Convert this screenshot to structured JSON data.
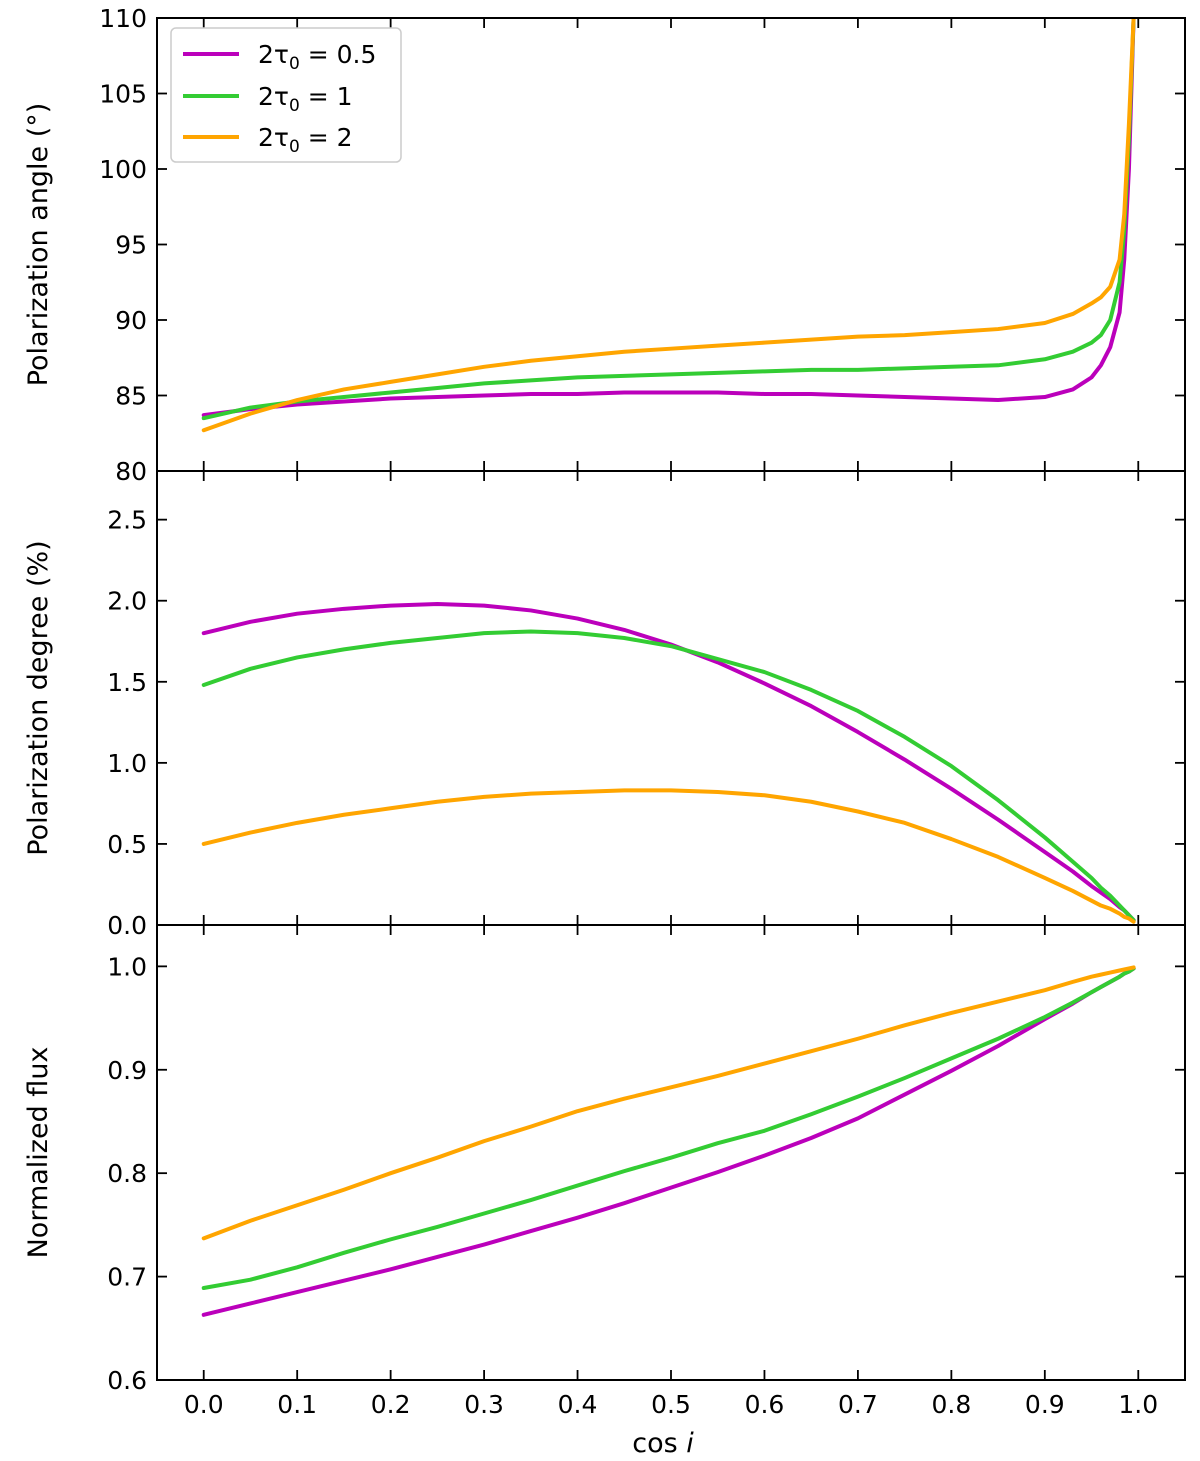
{
  "chart_data": {
    "type": "line",
    "x": [
      0.0,
      0.05,
      0.1,
      0.15,
      0.2,
      0.25,
      0.3,
      0.35,
      0.4,
      0.45,
      0.5,
      0.55,
      0.6,
      0.65,
      0.7,
      0.75,
      0.8,
      0.85,
      0.9,
      0.93,
      0.95,
      0.96,
      0.97,
      0.98,
      0.985,
      0.99,
      0.995
    ],
    "xlabel": "cos",
    "xlabel_italic": "i",
    "xlim": [
      -0.05,
      1.05
    ],
    "xticks": [
      0.0,
      0.1,
      0.2,
      0.3,
      0.4,
      0.5,
      0.6,
      0.7,
      0.8,
      0.9,
      1.0
    ],
    "xtick_labels": [
      "0.0",
      "0.1",
      "0.2",
      "0.3",
      "0.4",
      "0.5",
      "0.6",
      "0.7",
      "0.8",
      "0.9",
      "1.0"
    ],
    "legend": {
      "placement": "upper-left of top panel",
      "entries": [
        {
          "prefix": "2τ",
          "subscript": "0",
          "suffix": " = 0.5"
        },
        {
          "prefix": "2τ",
          "subscript": "0",
          "suffix": " = 1"
        },
        {
          "prefix": "2τ",
          "subscript": "0",
          "suffix": " = 2"
        }
      ]
    },
    "series_colors": [
      "#bb00bb",
      "#33cc33",
      "#ffa500"
    ],
    "panels": [
      {
        "id": "angle",
        "ylabel": "Polarization angle (°)",
        "ylim": [
          80,
          110
        ],
        "yticks": [
          80,
          85,
          90,
          95,
          100,
          105,
          110
        ],
        "ytick_labels": [
          "80",
          "85",
          "90",
          "95",
          "100",
          "105",
          "110"
        ],
        "series": [
          {
            "name": "2τ0 = 0.5",
            "values": [
              83.7,
              84.1,
              84.4,
              84.6,
              84.8,
              84.9,
              85.0,
              85.1,
              85.1,
              85.2,
              85.2,
              85.2,
              85.1,
              85.1,
              85.0,
              84.9,
              84.8,
              84.7,
              84.9,
              85.4,
              86.2,
              87.0,
              88.2,
              90.5,
              94.0,
              100.0,
              110.0
            ]
          },
          {
            "name": "2τ0 = 1",
            "values": [
              83.5,
              84.2,
              84.6,
              84.9,
              85.2,
              85.5,
              85.8,
              86.0,
              86.2,
              86.3,
              86.4,
              86.5,
              86.6,
              86.7,
              86.7,
              86.8,
              86.9,
              87.0,
              87.4,
              87.9,
              88.5,
              89.0,
              90.0,
              92.5,
              96.0,
              102.0,
              110.0
            ]
          },
          {
            "name": "2τ0 = 2",
            "values": [
              82.7,
              83.8,
              84.7,
              85.4,
              85.9,
              86.4,
              86.9,
              87.3,
              87.6,
              87.9,
              88.1,
              88.3,
              88.5,
              88.7,
              88.9,
              89.0,
              89.2,
              89.4,
              89.8,
              90.4,
              91.1,
              91.5,
              92.2,
              94.0,
              97.0,
              103.0,
              110.0
            ]
          }
        ]
      },
      {
        "id": "degree",
        "ylabel": "Polarization degree (%)",
        "ylim": [
          0.0,
          2.8
        ],
        "yticks": [
          0.0,
          0.5,
          1.0,
          1.5,
          2.0,
          2.5
        ],
        "ytick_labels": [
          "0.0",
          "0.5",
          "1.0",
          "1.5",
          "2.0",
          "2.5"
        ],
        "series": [
          {
            "name": "2τ0 = 0.5",
            "values": [
              1.8,
              1.87,
              1.92,
              1.95,
              1.97,
              1.98,
              1.97,
              1.94,
              1.89,
              1.82,
              1.73,
              1.62,
              1.49,
              1.35,
              1.19,
              1.02,
              0.84,
              0.65,
              0.45,
              0.33,
              0.24,
              0.2,
              0.16,
              0.11,
              0.09,
              0.06,
              0.03
            ]
          },
          {
            "name": "2τ0 = 1",
            "values": [
              1.48,
              1.58,
              1.65,
              1.7,
              1.74,
              1.77,
              1.8,
              1.81,
              1.8,
              1.77,
              1.72,
              1.64,
              1.56,
              1.45,
              1.32,
              1.16,
              0.98,
              0.77,
              0.54,
              0.39,
              0.29,
              0.23,
              0.18,
              0.12,
              0.09,
              0.06,
              0.03
            ]
          },
          {
            "name": "2τ0 = 2",
            "values": [
              0.5,
              0.57,
              0.63,
              0.68,
              0.72,
              0.76,
              0.79,
              0.81,
              0.82,
              0.83,
              0.83,
              0.82,
              0.8,
              0.76,
              0.7,
              0.63,
              0.53,
              0.42,
              0.29,
              0.21,
              0.15,
              0.12,
              0.1,
              0.07,
              0.05,
              0.04,
              0.02
            ]
          }
        ]
      },
      {
        "id": "flux",
        "ylabel": "Normalized flux",
        "ylim": [
          0.6,
          1.04
        ],
        "yticks": [
          0.6,
          0.7,
          0.8,
          0.9,
          1.0
        ],
        "ytick_labels": [
          "0.6",
          "0.7",
          "0.8",
          "0.9",
          "1.0"
        ],
        "series": [
          {
            "name": "2τ0 = 0.5",
            "values": [
              0.663,
              0.674,
              0.685,
              0.696,
              0.707,
              0.719,
              0.731,
              0.744,
              0.757,
              0.771,
              0.786,
              0.801,
              0.817,
              0.834,
              0.853,
              0.876,
              0.899,
              0.923,
              0.949,
              0.964,
              0.975,
              0.98,
              0.985,
              0.99,
              0.993,
              0.995,
              0.998
            ]
          },
          {
            "name": "2τ0 = 1",
            "values": [
              0.689,
              0.697,
              0.709,
              0.723,
              0.736,
              0.748,
              0.761,
              0.774,
              0.788,
              0.802,
              0.815,
              0.829,
              0.841,
              0.857,
              0.874,
              0.892,
              0.911,
              0.93,
              0.951,
              0.965,
              0.975,
              0.98,
              0.985,
              0.99,
              0.993,
              0.995,
              0.998
            ]
          },
          {
            "name": "2τ0 = 2",
            "values": [
              0.737,
              0.754,
              0.769,
              0.784,
              0.8,
              0.815,
              0.831,
              0.845,
              0.86,
              0.872,
              0.883,
              0.894,
              0.906,
              0.918,
              0.93,
              0.943,
              0.955,
              0.966,
              0.977,
              0.985,
              0.99,
              0.992,
              0.994,
              0.996,
              0.997,
              0.998,
              0.999
            ]
          }
        ]
      }
    ]
  }
}
